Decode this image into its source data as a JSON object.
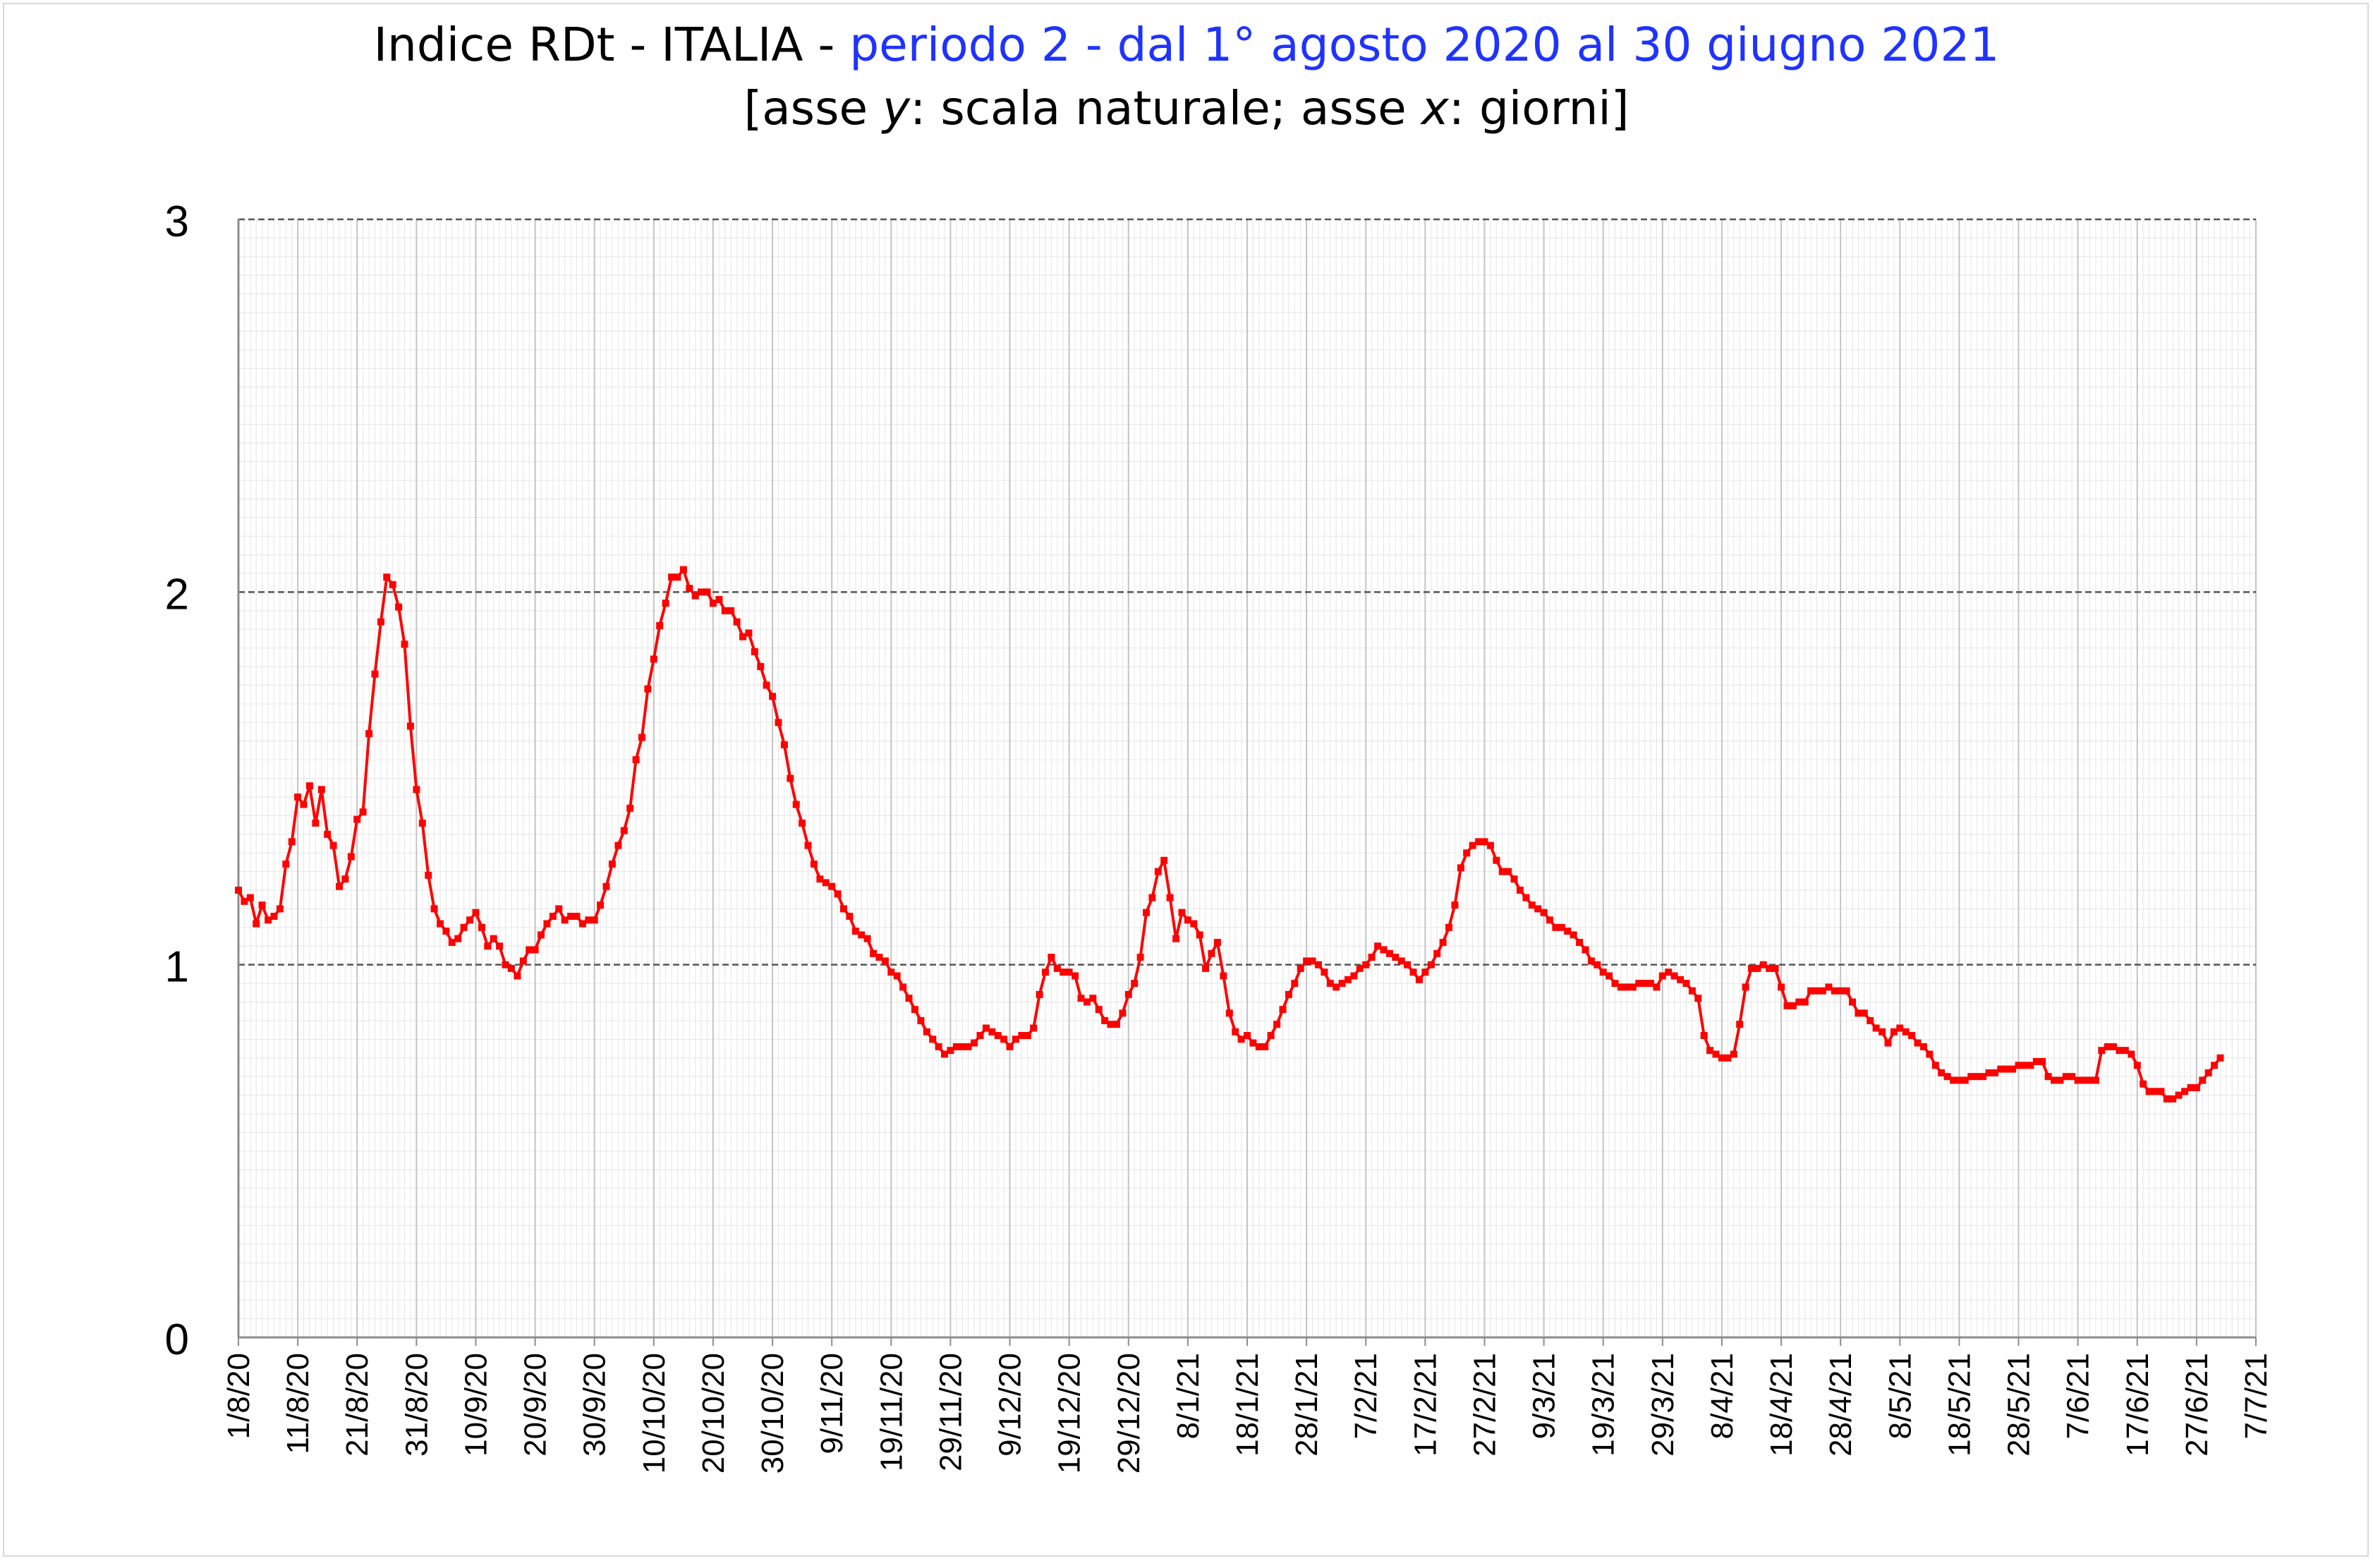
{
  "chart_data": {
    "type": "line",
    "title": {
      "main": "Indice RDt - ITALIA - ",
      "highlight": "periodo 2 - dal 1° agosto 2020 al 30 giugno 2021",
      "subtitle_parts": [
        "[asse ",
        "y",
        ": scala naturale; asse ",
        "x",
        ": giorni]"
      ]
    },
    "xlabel": "",
    "ylabel": "",
    "ylim": [
      0,
      3
    ],
    "y_ticks": [
      "0",
      "1",
      "2",
      "3"
    ],
    "y_gridlines_dashed": [
      1,
      2,
      3
    ],
    "x_range": [
      "2020-08-01",
      "2021-07-07"
    ],
    "x_tick_labels": [
      "1/8/20",
      "11/8/20",
      "21/8/20",
      "31/8/20",
      "10/9/20",
      "20/9/20",
      "30/9/20",
      "10/10/20",
      "20/10/20",
      "30/10/20",
      "9/11/20",
      "19/11/20",
      "29/11/20",
      "9/12/20",
      "19/12/20",
      "29/12/20",
      "8/1/21",
      "18/1/21",
      "28/1/21",
      "7/2/21",
      "17/2/21",
      "27/2/21",
      "9/3/21",
      "19/3/21",
      "29/3/21",
      "8/4/21",
      "18/4/21",
      "28/4/21",
      "8/5/21",
      "18/5/21",
      "28/5/21",
      "7/6/21",
      "17/6/21",
      "27/6/21",
      "7/7/21"
    ],
    "grid": true,
    "legend": "none",
    "line_color": "#ff0000",
    "marker": "square",
    "series": [
      {
        "start_date": "2020-08-01",
        "values": [
          1.2,
          1.17,
          1.18,
          1.11,
          1.16,
          1.12,
          1.13,
          1.15,
          1.27,
          1.33,
          1.45,
          1.43,
          1.48,
          1.38,
          1.47,
          1.35,
          1.32,
          1.21,
          1.23,
          1.29,
          1.39,
          1.41,
          1.62,
          1.78,
          1.92,
          2.04,
          2.02,
          1.96,
          1.86,
          1.64,
          1.47,
          1.38,
          1.24,
          1.15,
          1.11,
          1.09,
          1.06,
          1.07,
          1.1,
          1.12,
          1.14,
          1.1,
          1.05,
          1.07,
          1.05,
          1.0,
          0.99,
          0.97,
          1.01,
          1.04,
          1.04,
          1.08,
          1.11,
          1.13,
          1.15,
          1.12,
          1.13,
          1.13,
          1.11,
          1.12,
          1.12,
          1.16,
          1.21,
          1.27,
          1.32,
          1.36,
          1.42,
          1.55,
          1.61,
          1.74,
          1.82,
          1.91,
          1.97,
          2.04,
          2.04,
          2.06,
          2.01,
          1.99,
          2.0,
          2.0,
          1.97,
          1.98,
          1.95,
          1.95,
          1.92,
          1.88,
          1.89,
          1.84,
          1.8,
          1.75,
          1.72,
          1.65,
          1.59,
          1.5,
          1.43,
          1.38,
          1.32,
          1.27,
          1.23,
          1.22,
          1.21,
          1.19,
          1.15,
          1.13,
          1.09,
          1.08,
          1.07,
          1.03,
          1.02,
          1.01,
          0.98,
          0.97,
          0.94,
          0.91,
          0.88,
          0.85,
          0.82,
          0.8,
          0.78,
          0.76,
          0.77,
          0.78,
          0.78,
          0.78,
          0.79,
          0.81,
          0.83,
          0.82,
          0.81,
          0.8,
          0.78,
          0.8,
          0.81,
          0.81,
          0.83,
          0.92,
          0.98,
          1.02,
          0.99,
          0.98,
          0.98,
          0.97,
          0.91,
          0.9,
          0.91,
          0.88,
          0.85,
          0.84,
          0.84,
          0.87,
          0.92,
          0.95,
          1.02,
          1.14,
          1.18,
          1.25,
          1.28,
          1.18,
          1.07,
          1.14,
          1.12,
          1.11,
          1.08,
          0.99,
          1.03,
          1.06,
          0.97,
          0.87,
          0.82,
          0.8,
          0.81,
          0.79,
          0.78,
          0.78,
          0.81,
          0.84,
          0.88,
          0.92,
          0.95,
          0.99,
          1.01,
          1.01,
          1.0,
          0.98,
          0.95,
          0.94,
          0.95,
          0.96,
          0.97,
          0.99,
          1.0,
          1.02,
          1.05,
          1.04,
          1.03,
          1.02,
          1.01,
          1.0,
          0.98,
          0.96,
          0.98,
          1.0,
          1.03,
          1.06,
          1.1,
          1.16,
          1.26,
          1.3,
          1.32,
          1.33,
          1.33,
          1.32,
          1.28,
          1.25,
          1.25,
          1.23,
          1.2,
          1.18,
          1.16,
          1.15,
          1.14,
          1.12,
          1.1,
          1.1,
          1.09,
          1.08,
          1.06,
          1.04,
          1.01,
          1.0,
          0.98,
          0.97,
          0.95,
          0.94,
          0.94,
          0.94,
          0.95,
          0.95,
          0.95,
          0.94,
          0.97,
          0.98,
          0.97,
          0.96,
          0.95,
          0.93,
          0.91,
          0.81,
          0.77,
          0.76,
          0.75,
          0.75,
          0.76,
          0.84,
          0.94,
          0.99,
          0.99,
          1.0,
          0.99,
          0.99,
          0.94,
          0.89,
          0.89,
          0.9,
          0.9,
          0.93,
          0.93,
          0.93,
          0.94,
          0.93,
          0.93,
          0.93,
          0.9,
          0.87,
          0.87,
          0.85,
          0.83,
          0.82,
          0.79,
          0.82,
          0.83,
          0.82,
          0.81,
          0.79,
          0.78,
          0.76,
          0.73,
          0.71,
          0.7,
          0.69,
          0.69,
          0.69,
          0.7,
          0.7,
          0.7,
          0.71,
          0.71,
          0.72,
          0.72,
          0.72,
          0.73,
          0.73,
          0.73,
          0.74,
          0.74,
          0.7,
          0.69,
          0.69,
          0.7,
          0.7,
          0.69,
          0.69,
          0.69,
          0.69,
          0.77,
          0.78,
          0.78,
          0.77,
          0.77,
          0.76,
          0.73,
          0.68,
          0.66,
          0.66,
          0.66,
          0.64,
          0.64,
          0.65,
          0.66,
          0.67,
          0.67,
          0.69,
          0.71,
          0.73,
          0.75
        ]
      }
    ]
  }
}
